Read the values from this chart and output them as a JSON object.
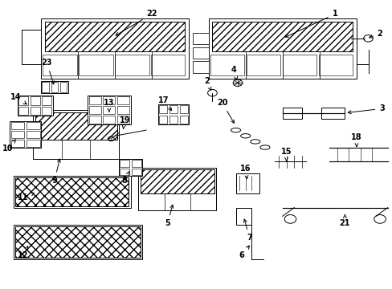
{
  "title": "",
  "background_color": "#ffffff",
  "line_color": "#000000",
  "fig_width": 4.89,
  "fig_height": 3.6,
  "dpi": 100,
  "callouts": [
    [
      1,
      0.855,
      0.955,
      0.72,
      0.87
    ],
    [
      2,
      0.97,
      0.885,
      0.935,
      0.87
    ],
    [
      2,
      0.525,
      0.72,
      0.54,
      0.68
    ],
    [
      3,
      0.975,
      0.625,
      0.88,
      0.61
    ],
    [
      4,
      0.595,
      0.76,
      0.605,
      0.715
    ],
    [
      5,
      0.425,
      0.225,
      0.44,
      0.3
    ],
    [
      6,
      0.615,
      0.115,
      0.64,
      0.155
    ],
    [
      7,
      0.635,
      0.175,
      0.62,
      0.25
    ],
    [
      8,
      0.315,
      0.375,
      0.33,
      0.415
    ],
    [
      9,
      0.135,
      0.375,
      0.15,
      0.46
    ],
    [
      10,
      0.015,
      0.485,
      0.04,
      0.525
    ],
    [
      11,
      0.055,
      0.315,
      0.09,
      0.335
    ],
    [
      12,
      0.055,
      0.115,
      0.07,
      0.155
    ],
    [
      13,
      0.275,
      0.645,
      0.275,
      0.605
    ],
    [
      14,
      0.035,
      0.665,
      0.07,
      0.635
    ],
    [
      15,
      0.73,
      0.475,
      0.73,
      0.44
    ],
    [
      16,
      0.625,
      0.415,
      0.63,
      0.37
    ],
    [
      17,
      0.415,
      0.655,
      0.44,
      0.61
    ],
    [
      18,
      0.91,
      0.525,
      0.91,
      0.49
    ],
    [
      19,
      0.315,
      0.585,
      0.31,
      0.545
    ],
    [
      20,
      0.565,
      0.645,
      0.6,
      0.565
    ],
    [
      21,
      0.88,
      0.225,
      0.88,
      0.265
    ],
    [
      22,
      0.385,
      0.955,
      0.285,
      0.875
    ],
    [
      23,
      0.115,
      0.785,
      0.135,
      0.7
    ]
  ]
}
